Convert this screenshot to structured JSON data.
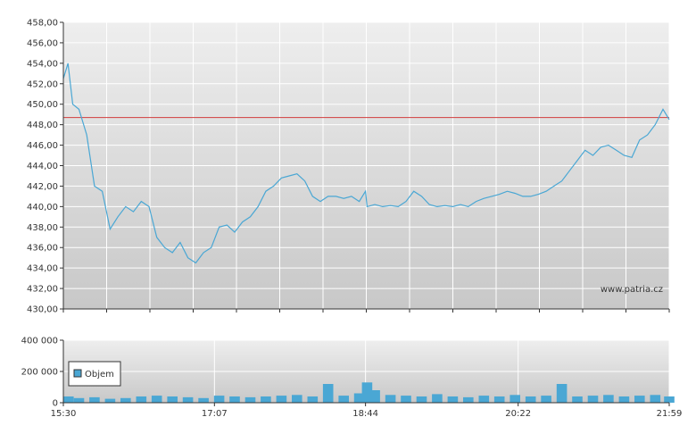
{
  "colors": {
    "price_line": "#4aa7d4",
    "reference_line": "#d23c3c",
    "volume_bar": "#4aa7d4",
    "axis": "#333333",
    "grid": "#ffffff",
    "plot_bg_top": "#eeeeee",
    "plot_bg_bottom": "#c8c8c8"
  },
  "watermark": "www.patria.cz",
  "legend": {
    "volume_label": "Objem",
    "position": "top-left"
  },
  "chart_data": [
    {
      "type": "line",
      "name": "price",
      "ylim": [
        430,
        458
      ],
      "y_ticks": [
        "430,00",
        "432,00",
        "434,00",
        "436,00",
        "438,00",
        "440,00",
        "442,00",
        "444,00",
        "446,00",
        "448,00",
        "450,00",
        "452,00",
        "454,00",
        "456,00",
        "458,00"
      ],
      "x_range": [
        "15:30",
        "21:59"
      ],
      "reference_line": 448.7,
      "grid": true,
      "x": [
        "15:30",
        "15:33",
        "15:36",
        "15:40",
        "15:45",
        "15:50",
        "15:55",
        "16:00",
        "16:05",
        "16:10",
        "16:15",
        "16:20",
        "16:25",
        "16:30",
        "16:35",
        "16:40",
        "16:45",
        "16:50",
        "16:55",
        "17:00",
        "17:05",
        "17:10",
        "17:15",
        "17:20",
        "17:25",
        "17:30",
        "17:35",
        "17:40",
        "17:45",
        "17:50",
        "17:55",
        "18:00",
        "18:05",
        "18:10",
        "18:15",
        "18:20",
        "18:25",
        "18:30",
        "18:35",
        "18:40",
        "18:44",
        "18:45",
        "18:50",
        "18:55",
        "19:00",
        "19:05",
        "19:10",
        "19:15",
        "19:20",
        "19:25",
        "19:30",
        "19:35",
        "19:40",
        "19:45",
        "19:50",
        "19:55",
        "20:00",
        "20:05",
        "20:10",
        "20:15",
        "20:20",
        "20:25",
        "20:30",
        "20:35",
        "20:40",
        "20:45",
        "20:50",
        "20:55",
        "21:00",
        "21:05",
        "21:10",
        "21:15",
        "21:20",
        "21:25",
        "21:30",
        "21:35",
        "21:40",
        "21:45",
        "21:50",
        "21:55",
        "21:59"
      ],
      "y": [
        452.5,
        454.0,
        450.0,
        449.5,
        447.0,
        442.0,
        441.5,
        437.8,
        439.0,
        440.0,
        439.5,
        440.5,
        440.0,
        437.0,
        436.0,
        435.5,
        436.5,
        435.0,
        434.5,
        435.5,
        436.0,
        438.0,
        438.2,
        437.5,
        438.5,
        439.0,
        440.0,
        441.5,
        442.0,
        442.8,
        443.0,
        443.2,
        442.5,
        441.0,
        440.5,
        441.0,
        441.0,
        440.8,
        441.0,
        440.5,
        441.5,
        440.0,
        440.2,
        440.0,
        440.1,
        440.0,
        440.5,
        441.5,
        441.0,
        440.2,
        440.0,
        440.1,
        440.0,
        440.2,
        440.0,
        440.5,
        440.8,
        441.0,
        441.2,
        441.5,
        441.3,
        441.0,
        441.0,
        441.2,
        441.5,
        442.0,
        442.5,
        443.5,
        444.5,
        445.5,
        445.0,
        445.8,
        446.0,
        445.5,
        445.0,
        444.8,
        446.5,
        447.0,
        448.0,
        449.5,
        448.5
      ]
    },
    {
      "type": "bar",
      "name": "Objem",
      "ylim": [
        0,
        400000
      ],
      "y_ticks": [
        "0",
        "200 000",
        "400 000"
      ],
      "x_ticks": [
        "15:30",
        "17:07",
        "18:44",
        "20:22",
        "21:59"
      ],
      "x_range": [
        "15:30",
        "21:59"
      ],
      "grid": true,
      "x": [
        "15:30",
        "15:40",
        "15:50",
        "16:00",
        "16:10",
        "16:20",
        "16:30",
        "16:40",
        "16:50",
        "17:00",
        "17:10",
        "17:20",
        "17:30",
        "17:40",
        "17:50",
        "18:00",
        "18:10",
        "18:20",
        "18:30",
        "18:40",
        "18:45",
        "18:50",
        "19:00",
        "19:10",
        "19:20",
        "19:30",
        "19:40",
        "19:50",
        "20:00",
        "20:10",
        "20:20",
        "20:30",
        "20:40",
        "20:50",
        "21:00",
        "21:10",
        "21:20",
        "21:30",
        "21:40",
        "21:50",
        "21:59"
      ],
      "values": [
        40000,
        30000,
        35000,
        25000,
        30000,
        40000,
        45000,
        40000,
        35000,
        30000,
        45000,
        40000,
        35000,
        40000,
        45000,
        50000,
        40000,
        120000,
        45000,
        60000,
        130000,
        80000,
        50000,
        45000,
        40000,
        55000,
        40000,
        35000,
        45000,
        40000,
        50000,
        40000,
        45000,
        120000,
        40000,
        45000,
        50000,
        40000,
        45000,
        50000,
        40000
      ]
    }
  ],
  "volume_x_labels": [
    "15:30",
    "17:07",
    "18:44",
    "20:22",
    "21:59"
  ]
}
